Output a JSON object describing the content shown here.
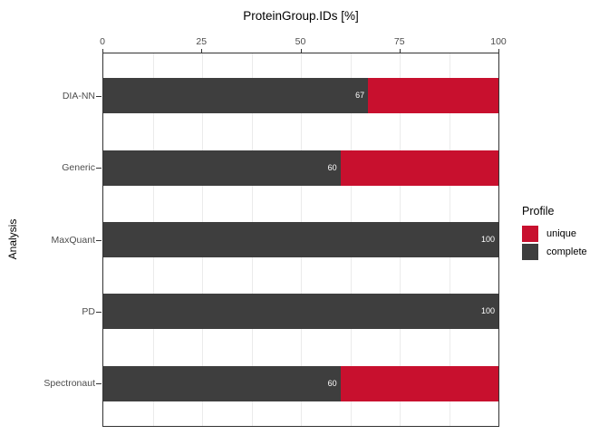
{
  "title": "ProteinGroup.IDs [%]",
  "y_axis_title": "Analysis",
  "x_axis": {
    "ticks": [
      0,
      25,
      50,
      75,
      100
    ]
  },
  "legend": {
    "title": "Profile",
    "items": [
      {
        "label": "unique",
        "color": "#C8102E"
      },
      {
        "label": "complete",
        "color": "#3E3E3E"
      }
    ]
  },
  "colors": {
    "bar_complete": "#3E3E3E",
    "bar_unique": "#C8102E",
    "bar_label_text": "#FFFFFF",
    "grid": "#EBEBEB",
    "axis_text": "#4D4D4D",
    "panel_border": "#333333"
  },
  "chart_data": {
    "type": "bar",
    "orientation": "horizontal",
    "stacked": true,
    "title": "ProteinGroup.IDs [%]",
    "xlabel": "",
    "ylabel": "Analysis",
    "xlim": [
      0,
      100
    ],
    "grid": "vertical-only",
    "minor_grid_step": 12.5,
    "legend_position": "right",
    "categories": [
      "DIA-NN",
      "Generic",
      "MaxQuant",
      "PD",
      "Spectronaut"
    ],
    "series": [
      {
        "name": "complete",
        "color": "#3E3E3E",
        "values": [
          67,
          60,
          100,
          100,
          60
        ]
      },
      {
        "name": "unique",
        "color": "#C8102E",
        "values": [
          33,
          40,
          0,
          0,
          40
        ]
      }
    ],
    "bar_labels": [
      "67",
      "60",
      "100",
      "100",
      "60"
    ]
  }
}
